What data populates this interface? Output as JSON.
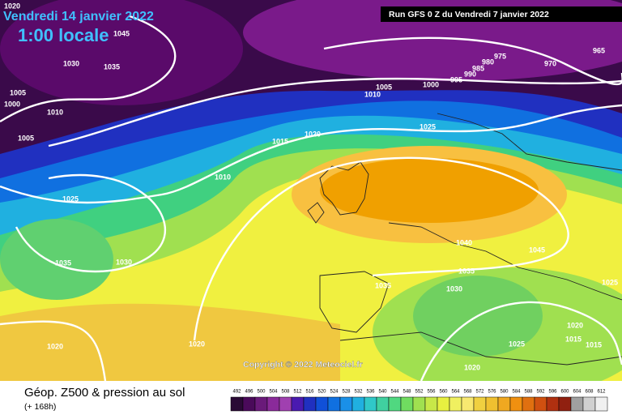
{
  "header": {
    "date": "Vendredi 14 janvier 2022",
    "time": "1:00 locale",
    "run": "Run GFS 0 Z du Vendredi 7 janvier 2022"
  },
  "copyright": "Copyright © 2022 Meteociel.fr",
  "isobars": [
    1020,
    1045,
    1030,
    1035,
    1005,
    1000,
    1010,
    1005,
    1015,
    1020,
    1025,
    1005,
    1010,
    1000,
    995,
    990,
    985,
    980,
    975,
    970,
    965,
    1010,
    1025,
    1035,
    1030,
    1040,
    1045,
    1035,
    1030,
    1035,
    1025,
    1020,
    1020,
    1020,
    1025,
    1020,
    1015,
    1015
  ],
  "footer": {
    "title": "Géop. Z500 & pression au sol",
    "subtitle": "(+ 168h)"
  },
  "scale": {
    "labels": [
      492,
      496,
      500,
      504,
      508,
      512,
      516,
      520,
      524,
      528,
      532,
      536,
      540,
      544,
      548,
      552,
      556,
      560,
      564,
      568,
      572,
      576,
      580,
      584,
      588,
      592,
      596,
      600,
      604,
      608,
      612
    ],
    "colors": [
      "#2a0a35",
      "#4a0a5a",
      "#6a1a7a",
      "#8a2a9a",
      "#a040b0",
      "#4a1ab0",
      "#2030c0",
      "#1050d8",
      "#1070e0",
      "#1a90e8",
      "#20b0e0",
      "#30c8c8",
      "#40d0a0",
      "#50d880",
      "#70dc60",
      "#a0e050",
      "#c8e848",
      "#e8f040",
      "#f0f060",
      "#f8e870",
      "#f0d040",
      "#f0c030",
      "#f0a820",
      "#f09010",
      "#e07010",
      "#d05010",
      "#b03010",
      "#902010",
      "#a0a0a0",
      "#d0d0d0",
      "#f0f0f0"
    ]
  }
}
